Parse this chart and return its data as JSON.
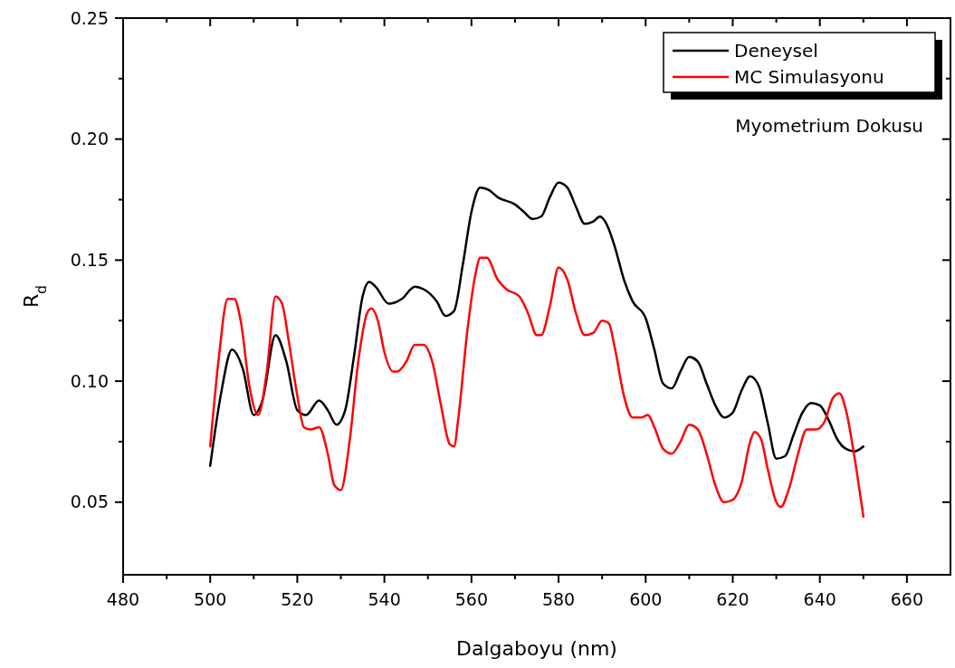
{
  "chart_data": {
    "type": "line",
    "xlabel": "Dalgaboyu (nm)",
    "ylabel": "R$_{d}$",
    "annotations": [
      "Myometrium Dokusu"
    ],
    "xlim": [
      480,
      670
    ],
    "xticks": [
      480,
      500,
      520,
      540,
      560,
      580,
      600,
      620,
      640,
      660
    ],
    "ylim": [
      0.02,
      0.25
    ],
    "yticks": [
      {
        "value": 0.05,
        "label": "0.05"
      },
      {
        "value": 0.1,
        "label": "0.10"
      },
      {
        "value": 0.15,
        "label": "0.15"
      },
      {
        "value": 0.2,
        "label": "0.20"
      },
      {
        "value": 0.25,
        "label": "0.25"
      }
    ],
    "grid": false,
    "legend": "top right",
    "line_style": "solid",
    "marker": "none",
    "series": [
      {
        "name": "Deneysel",
        "color": "#000000",
        "x": [
          500,
          502.5,
          505,
          507.5,
          510,
          512,
          515,
          517.5,
          520,
          522,
          525,
          527,
          529,
          531,
          533,
          535,
          536.5,
          538,
          541,
          544,
          547,
          549,
          552,
          554,
          556,
          558,
          560,
          562,
          564,
          566,
          570,
          572,
          574,
          576,
          578,
          580,
          582,
          584,
          586,
          588,
          589.5,
          591,
          593,
          595,
          597,
          600,
          602,
          604,
          606,
          608,
          610,
          612,
          614,
          616,
          618,
          620,
          622,
          624,
          626,
          628,
          630,
          632,
          634,
          636,
          638,
          640,
          642,
          644,
          646,
          648,
          650
        ],
        "values": [
          0.065,
          0.095,
          0.113,
          0.105,
          0.086,
          0.092,
          0.119,
          0.108,
          0.088,
          0.086,
          0.092,
          0.088,
          0.082,
          0.088,
          0.11,
          0.135,
          0.141,
          0.139,
          0.132,
          0.134,
          0.139,
          0.138,
          0.133,
          0.127,
          0.129,
          0.148,
          0.17,
          0.18,
          0.179,
          0.176,
          0.173,
          0.17,
          0.167,
          0.168,
          0.176,
          0.182,
          0.18,
          0.172,
          0.165,
          0.166,
          0.168,
          0.165,
          0.155,
          0.142,
          0.133,
          0.126,
          0.113,
          0.099,
          0.097,
          0.104,
          0.11,
          0.108,
          0.099,
          0.09,
          0.085,
          0.087,
          0.096,
          0.102,
          0.098,
          0.083,
          0.068,
          0.069,
          0.078,
          0.087,
          0.091,
          0.09,
          0.084,
          0.076,
          0.072,
          0.071,
          0.073
        ]
      },
      {
        "name": "MC Simulasyonu",
        "color": "#ff0000",
        "x": [
          500,
          502,
          504,
          505.5,
          507,
          509,
          511,
          513,
          515,
          516.5,
          518,
          520,
          521.5,
          523,
          525,
          527,
          528.5,
          530,
          532,
          534,
          536,
          537,
          538.5,
          540,
          542,
          543,
          545,
          547,
          549,
          551,
          553,
          555,
          556,
          557,
          559,
          561,
          562,
          563.5,
          566,
          568,
          571,
          573,
          575,
          576,
          578,
          580,
          582,
          584,
          586,
          588,
          590,
          591.5,
          593,
          595,
          597,
          599,
          600.5,
          602,
          604,
          606,
          608,
          610,
          612,
          614,
          616,
          618,
          620,
          622,
          624,
          625,
          626.5,
          628,
          630,
          631,
          633,
          635,
          637,
          639,
          641,
          643,
          644.5,
          646,
          648,
          650
        ],
        "values": [
          0.073,
          0.11,
          0.134,
          0.134,
          0.125,
          0.098,
          0.086,
          0.104,
          0.135,
          0.132,
          0.117,
          0.094,
          0.081,
          0.08,
          0.081,
          0.07,
          0.057,
          0.055,
          0.075,
          0.108,
          0.128,
          0.13,
          0.125,
          0.112,
          0.104,
          0.104,
          0.108,
          0.115,
          0.115,
          0.108,
          0.09,
          0.074,
          0.073,
          0.085,
          0.12,
          0.145,
          0.151,
          0.151,
          0.142,
          0.138,
          0.135,
          0.128,
          0.119,
          0.119,
          0.131,
          0.147,
          0.142,
          0.128,
          0.119,
          0.12,
          0.125,
          0.124,
          0.113,
          0.094,
          0.085,
          0.085,
          0.086,
          0.081,
          0.072,
          0.07,
          0.075,
          0.082,
          0.08,
          0.07,
          0.057,
          0.05,
          0.051,
          0.058,
          0.075,
          0.079,
          0.076,
          0.064,
          0.05,
          0.048,
          0.056,
          0.07,
          0.08,
          0.08,
          0.083,
          0.093,
          0.095,
          0.088,
          0.068,
          0.044
        ]
      }
    ]
  }
}
